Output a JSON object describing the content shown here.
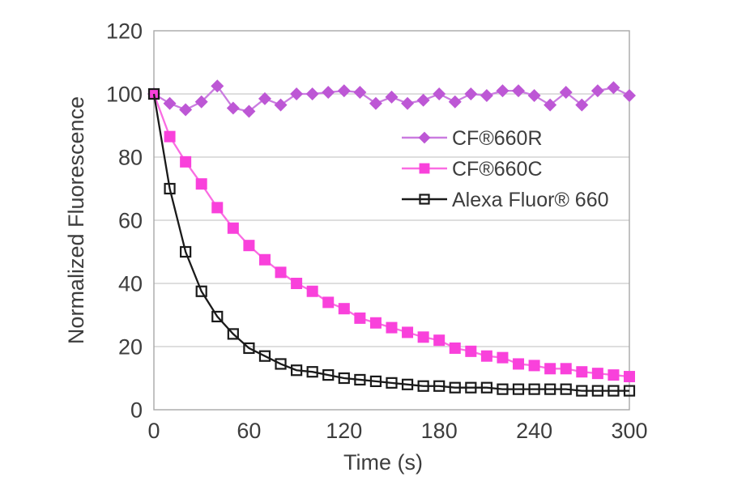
{
  "chart_data": {
    "type": "line",
    "title": "",
    "xlabel": "Time (s)",
    "ylabel": "Normalized Fluorescence",
    "xlim": [
      0,
      300
    ],
    "ylim": [
      0,
      120
    ],
    "xticks": [
      0,
      60,
      120,
      180,
      240,
      300
    ],
    "yticks": [
      0,
      20,
      40,
      60,
      80,
      100,
      120
    ],
    "grid": "horizontal gridlines at every y tick",
    "legend_position": "inside plot, upper middle-right, no border",
    "x": [
      0,
      10,
      20,
      30,
      40,
      50,
      60,
      70,
      80,
      90,
      100,
      110,
      120,
      130,
      140,
      150,
      160,
      170,
      180,
      190,
      200,
      210,
      220,
      230,
      240,
      250,
      260,
      270,
      280,
      290,
      300
    ],
    "series": [
      {
        "name": "CF®660R",
        "marker": "filled-diamond",
        "marker_color": "#bd57d5",
        "line_color": "#ca7ce0",
        "values": [
          100,
          97,
          95,
          97.5,
          102.5,
          95.5,
          94.5,
          98.5,
          96.5,
          100,
          100,
          100.5,
          101,
          100.5,
          97,
          99,
          97,
          98,
          100,
          97.5,
          100,
          99.5,
          101,
          101,
          99.5,
          96.5,
          100.5,
          96.5,
          101,
          102,
          99.5
        ]
      },
      {
        "name": "CF®660C",
        "marker": "filled-square",
        "marker_color": "#f941db",
        "line_color": "#fa6ce2",
        "values": [
          100,
          86.5,
          78.5,
          71.5,
          64,
          57.5,
          52,
          47.5,
          43.5,
          40,
          37.5,
          34,
          32,
          29,
          27.5,
          26,
          24.5,
          23,
          22,
          19.5,
          18.5,
          17,
          16.5,
          14.5,
          14,
          13,
          13,
          12,
          11.5,
          11,
          10.5
        ]
      },
      {
        "name": "Alexa Fluor® 660",
        "marker": "open-square",
        "marker_color": "#1a1a1a",
        "line_color": "#1a1a1a",
        "values": [
          100,
          70,
          50,
          37.5,
          29.5,
          24,
          19.5,
          17,
          14.5,
          12.5,
          12,
          11,
          10,
          9.5,
          9,
          8.5,
          8,
          7.5,
          7.5,
          7,
          7,
          7,
          6.5,
          6.5,
          6.5,
          6.5,
          6.5,
          6,
          6,
          6,
          6
        ]
      }
    ],
    "colors": {
      "background": "#ffffff",
      "plot_border": "#a8a8a8",
      "gridline": "#c9c9c9",
      "text": "#3d3d3d"
    }
  }
}
